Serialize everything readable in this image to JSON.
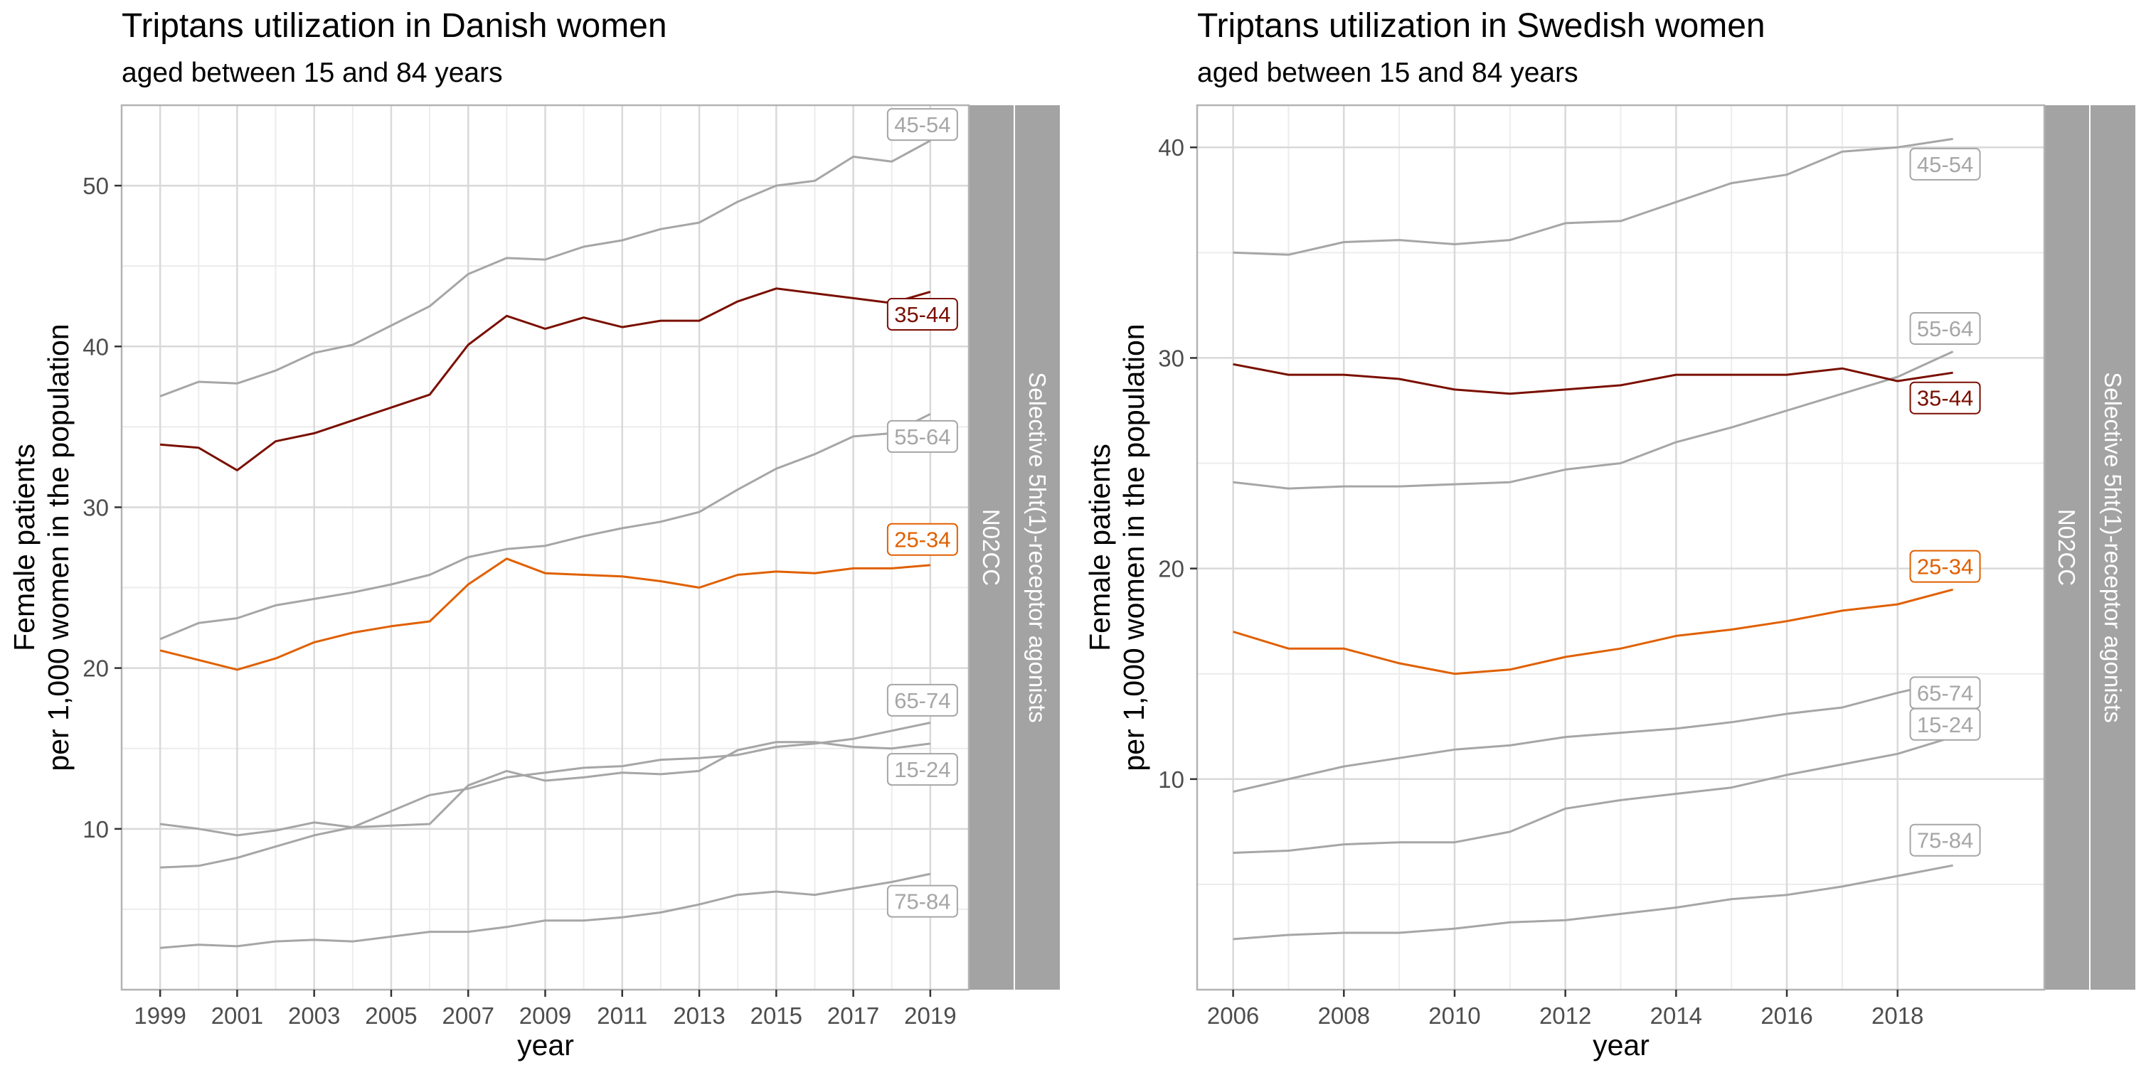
{
  "chart_data": [
    {
      "type": "line",
      "title": "Triptans utilization in Danish women",
      "subtitle": "aged between 15 and 84 years",
      "xlabel": "year",
      "ylabel_lines": [
        "Female patients",
        "per 1,000 women in the population"
      ],
      "xlim": [
        1998,
        2020
      ],
      "ylim": [
        0,
        55
      ],
      "x_ticks": [
        1999,
        2001,
        2003,
        2005,
        2007,
        2009,
        2011,
        2013,
        2015,
        2017,
        2019
      ],
      "x_tick_labels": [
        "1999",
        "2001",
        "2003",
        "2005",
        "2007",
        "2009",
        "2011",
        "2013",
        "2015",
        "2017",
        "2019"
      ],
      "y_ticks": [
        10,
        20,
        30,
        40,
        50
      ],
      "y_tick_labels": [
        "10",
        "20",
        "30",
        "40",
        "50"
      ],
      "strip_labels": [
        "N02CC",
        "Selective 5ht(1)-receptor agonists"
      ],
      "grid": true,
      "x": [
        1999,
        2000,
        2001,
        2002,
        2003,
        2004,
        2005,
        2006,
        2007,
        2008,
        2009,
        2010,
        2011,
        2012,
        2013,
        2014,
        2015,
        2016,
        2017,
        2018,
        2019
      ],
      "series": [
        {
          "name": "45-54",
          "color": "#a6a6a6",
          "label_y": 53.8,
          "values": [
            36.9,
            37.8,
            37.7,
            38.5,
            39.6,
            40.1,
            41.3,
            42.5,
            44.5,
            45.5,
            45.4,
            46.2,
            46.6,
            47.3,
            47.7,
            49.0,
            50.0,
            50.3,
            51.8,
            51.5,
            52.8
          ]
        },
        {
          "name": "35-44",
          "color": "#7a0f00",
          "label_y": 42.0,
          "values": [
            33.9,
            33.7,
            32.3,
            34.1,
            34.6,
            35.4,
            36.2,
            37.0,
            40.1,
            41.9,
            41.1,
            41.8,
            41.2,
            41.6,
            41.6,
            42.8,
            43.6,
            43.3,
            43.0,
            42.7,
            43.4
          ]
        },
        {
          "name": "55-64",
          "color": "#a6a6a6",
          "label_y": 34.4,
          "values": [
            21.8,
            22.8,
            23.1,
            23.9,
            24.3,
            24.7,
            25.2,
            25.8,
            26.9,
            27.4,
            27.6,
            28.2,
            28.7,
            29.1,
            29.7,
            31.1,
            32.4,
            33.3,
            34.4,
            34.6,
            35.8
          ]
        },
        {
          "name": "25-34",
          "color": "#e06000",
          "label_y": 28.0,
          "values": [
            21.1,
            20.5,
            19.9,
            20.6,
            21.6,
            22.2,
            22.6,
            22.9,
            25.2,
            26.8,
            25.9,
            25.8,
            25.7,
            25.4,
            25.0,
            25.8,
            26.0,
            25.9,
            26.2,
            26.2,
            26.4
          ]
        },
        {
          "name": "65-74",
          "color": "#a6a6a6",
          "label_y": 18.0,
          "values": [
            7.6,
            7.7,
            8.2,
            8.9,
            9.6,
            10.1,
            11.1,
            12.1,
            12.5,
            13.2,
            13.5,
            13.8,
            13.9,
            14.3,
            14.4,
            14.6,
            15.1,
            15.3,
            15.6,
            16.1,
            16.6
          ]
        },
        {
          "name": "15-24",
          "color": "#a6a6a6",
          "label_y": 13.7,
          "values": [
            10.3,
            10.0,
            9.6,
            9.9,
            10.4,
            10.1,
            10.2,
            10.3,
            12.7,
            13.6,
            13.0,
            13.2,
            13.5,
            13.4,
            13.6,
            14.9,
            15.4,
            15.4,
            15.1,
            15.0,
            15.3
          ]
        },
        {
          "name": "75-84",
          "color": "#a6a6a6",
          "label_y": 5.5,
          "values": [
            2.6,
            2.8,
            2.7,
            3.0,
            3.1,
            3.0,
            3.3,
            3.6,
            3.6,
            3.9,
            4.3,
            4.3,
            4.5,
            4.8,
            5.3,
            5.9,
            6.1,
            5.9,
            6.3,
            6.7,
            7.2
          ]
        }
      ]
    },
    {
      "type": "line",
      "title": "Triptans utilization in Swedish women",
      "subtitle": "aged between 15 and 84 years",
      "xlabel": "year",
      "ylabel_lines": [
        "Female patients",
        "per 1,000 women in the population"
      ],
      "xlim": [
        2005.35,
        2020.65
      ],
      "ylim": [
        0,
        42
      ],
      "x_ticks": [
        2006,
        2008,
        2010,
        2012,
        2014,
        2016,
        2018
      ],
      "x_tick_labels": [
        "2006",
        "2008",
        "2010",
        "2012",
        "2014",
        "2016",
        "2018"
      ],
      "y_ticks": [
        10,
        20,
        30,
        40
      ],
      "y_tick_labels": [
        "10",
        "20",
        "30",
        "40"
      ],
      "strip_labels": [
        "N02CC",
        "Selective 5ht(1)-receptor agonists"
      ],
      "grid": true,
      "x": [
        2006,
        2007,
        2008,
        2009,
        2010,
        2011,
        2012,
        2013,
        2014,
        2015,
        2016,
        2017,
        2018,
        2019
      ],
      "series": [
        {
          "name": "45-54",
          "color": "#a6a6a6",
          "label_y": 39.2,
          "values": [
            35.0,
            34.9,
            35.5,
            35.6,
            35.4,
            35.6,
            36.4,
            36.5,
            37.4,
            38.3,
            38.7,
            39.8,
            40.0,
            40.4
          ]
        },
        {
          "name": "55-64",
          "color": "#a6a6a6",
          "label_y": 31.4,
          "values": [
            24.1,
            23.8,
            23.9,
            23.9,
            24.0,
            24.1,
            24.7,
            25.0,
            26.0,
            26.7,
            27.5,
            28.3,
            29.1,
            30.3
          ]
        },
        {
          "name": "35-44",
          "color": "#7a0f00",
          "label_y": 28.1,
          "values": [
            29.7,
            29.2,
            29.2,
            29.0,
            28.5,
            28.3,
            28.5,
            28.7,
            29.2,
            29.2,
            29.2,
            29.5,
            28.9,
            29.3
          ]
        },
        {
          "name": "25-34",
          "color": "#e06000",
          "label_y": 20.1,
          "values": [
            17.0,
            16.2,
            16.2,
            15.5,
            15.0,
            15.2,
            15.8,
            16.2,
            16.8,
            17.1,
            17.5,
            18.0,
            18.3,
            19.0
          ]
        },
        {
          "name": "65-74",
          "color": "#a6a6a6",
          "label_y": 14.1,
          "values": [
            9.4,
            10.0,
            10.6,
            11.0,
            11.4,
            11.6,
            12.0,
            12.2,
            12.4,
            12.7,
            13.1,
            13.4,
            14.1,
            14.7
          ]
        },
        {
          "name": "15-24",
          "color": "#a6a6a6",
          "label_y": 12.6,
          "values": [
            6.5,
            6.6,
            6.9,
            7.0,
            7.0,
            7.5,
            8.6,
            9.0,
            9.3,
            9.6,
            10.2,
            10.7,
            11.2,
            12.0
          ]
        },
        {
          "name": "75-84",
          "color": "#a6a6a6",
          "label_y": 7.1,
          "values": [
            2.4,
            2.6,
            2.7,
            2.7,
            2.9,
            3.2,
            3.3,
            3.6,
            3.9,
            4.3,
            4.5,
            4.9,
            5.4,
            5.9
          ]
        }
      ]
    }
  ]
}
